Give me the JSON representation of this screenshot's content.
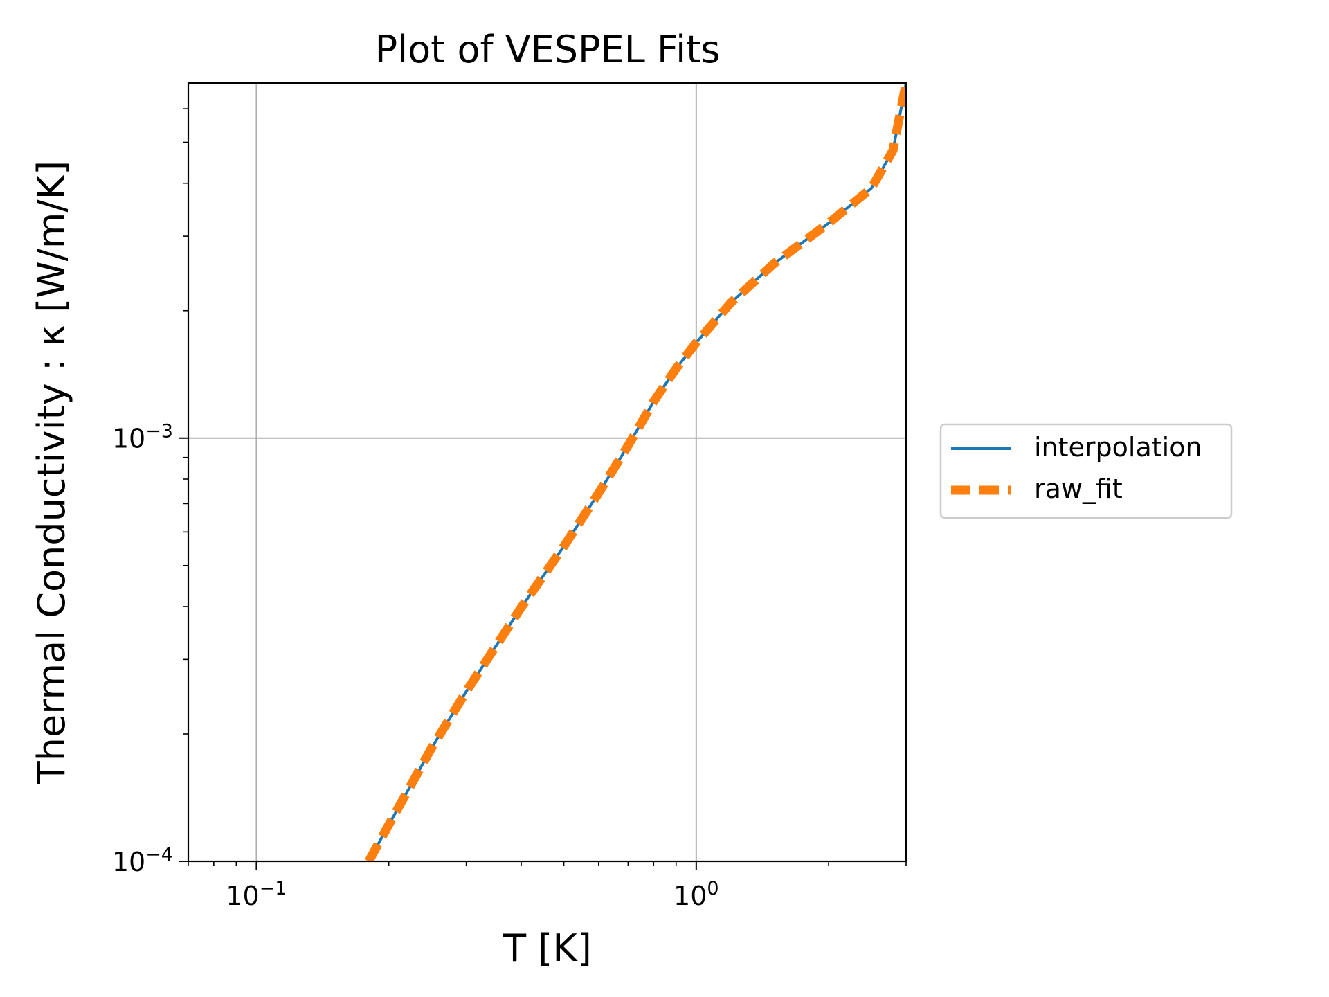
{
  "chart_data": {
    "type": "line",
    "title": "Plot of VESPEL Fits",
    "xlabel": "T [K]",
    "ylabel": "Thermal Conductivity : κ [W/m/K]",
    "x_scale": "log",
    "y_scale": "log",
    "xlim": [
      0.07,
      3.0
    ],
    "ylim": [
      0.0001,
      0.0069
    ],
    "grid": true,
    "legend_position": "outside-right",
    "x_major_ticks": [
      {
        "value": 0.1,
        "base": "10",
        "exp": "−1"
      },
      {
        "value": 1.0,
        "base": "10",
        "exp": "0"
      }
    ],
    "y_major_ticks": [
      {
        "value": 0.0001,
        "base": "10",
        "exp": "−4"
      },
      {
        "value": 0.001,
        "base": "10",
        "exp": "−3"
      }
    ],
    "x": [
      0.18,
      0.2,
      0.25,
      0.3,
      0.35,
      0.4,
      0.5,
      0.6,
      0.7,
      0.8,
      0.9,
      1.0,
      1.2,
      1.5,
      2.0,
      2.5,
      2.8,
      3.0
    ],
    "series": [
      {
        "name": "interpolation",
        "color": "#1f77b4",
        "style": "solid",
        "values": [
          0.0001,
          0.000122,
          0.000185,
          0.000252,
          0.000322,
          0.000398,
          0.000555,
          0.000742,
          0.00096,
          0.00122,
          0.00146,
          0.00168,
          0.00209,
          0.00258,
          0.00322,
          0.00389,
          0.00478,
          0.0069
        ]
      },
      {
        "name": "raw_fit",
        "color": "#ff7f0e",
        "style": "dashed",
        "values": [
          0.0001,
          0.000122,
          0.000185,
          0.000252,
          0.000322,
          0.000398,
          0.000555,
          0.000742,
          0.00096,
          0.00122,
          0.00146,
          0.00168,
          0.00209,
          0.00258,
          0.00322,
          0.00389,
          0.00478,
          0.0069
        ]
      }
    ]
  }
}
